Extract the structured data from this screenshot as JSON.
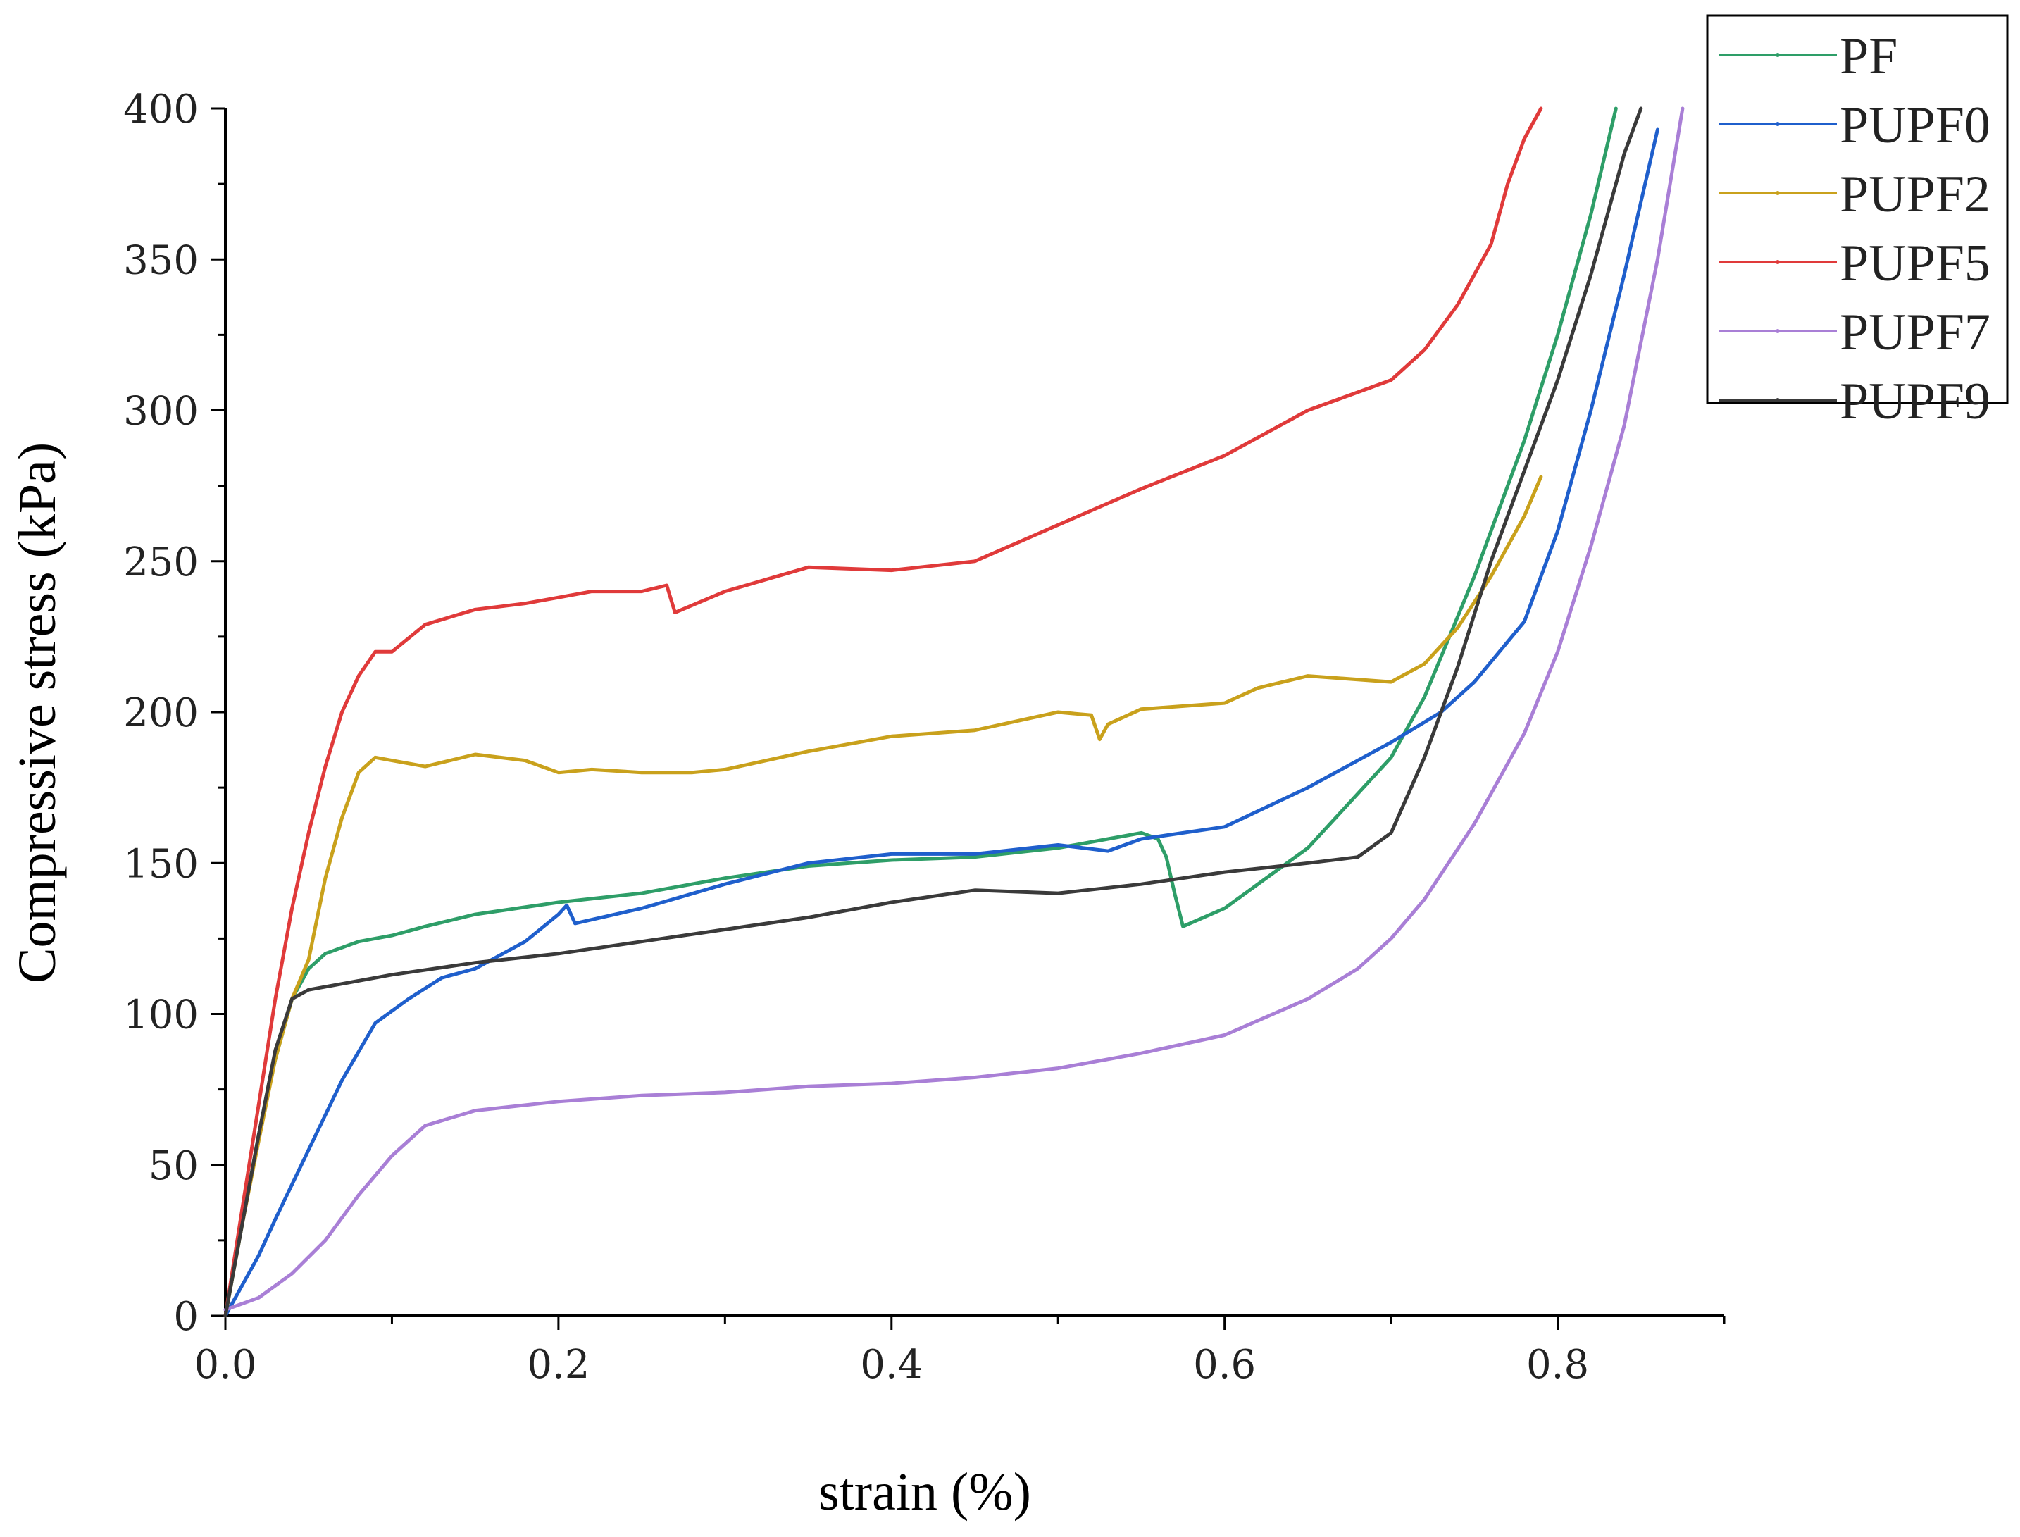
{
  "chart_data": {
    "type": "line",
    "title": "",
    "xlabel": "strain (%)",
    "ylabel": "Compressive stress (kPa)",
    "xlim": [
      0,
      0.9
    ],
    "ylim": [
      0,
      400
    ],
    "x_ticks": [
      0.0,
      0.2,
      0.4,
      0.6,
      0.8
    ],
    "x_tick_labels": [
      "0.0",
      "0.2",
      "0.4",
      "0.6",
      "0.8"
    ],
    "y_ticks": [
      0,
      50,
      100,
      150,
      200,
      250,
      300,
      350,
      400
    ],
    "y_tick_labels": [
      "0",
      "50",
      "100",
      "150",
      "200",
      "250",
      "300",
      "350",
      "400"
    ],
    "grid": false,
    "legend_position": "top-right",
    "series": [
      {
        "name": "PF",
        "color": "#2e9e68",
        "x": [
          0,
          0.01,
          0.02,
          0.03,
          0.04,
          0.05,
          0.06,
          0.08,
          0.1,
          0.12,
          0.15,
          0.2,
          0.25,
          0.3,
          0.35,
          0.4,
          0.45,
          0.5,
          0.53,
          0.55,
          0.56,
          0.565,
          0.57,
          0.575,
          0.6,
          0.65,
          0.7,
          0.72,
          0.75,
          0.78,
          0.8,
          0.82,
          0.835
        ],
        "y": [
          0,
          30,
          60,
          85,
          105,
          115,
          120,
          124,
          126,
          129,
          133,
          137,
          140,
          145,
          149,
          151,
          152,
          155,
          158,
          160,
          158,
          152,
          140,
          129,
          135,
          155,
          185,
          205,
          245,
          290,
          325,
          365,
          400
        ]
      },
      {
        "name": "PUPF0",
        "color": "#1f5fcc",
        "x": [
          0,
          0.01,
          0.02,
          0.03,
          0.05,
          0.07,
          0.09,
          0.11,
          0.13,
          0.15,
          0.18,
          0.2,
          0.205,
          0.21,
          0.25,
          0.3,
          0.35,
          0.4,
          0.45,
          0.5,
          0.53,
          0.55,
          0.6,
          0.65,
          0.7,
          0.73,
          0.75,
          0.78,
          0.8,
          0.82,
          0.84,
          0.86
        ],
        "y": [
          0,
          10,
          20,
          32,
          55,
          78,
          97,
          105,
          112,
          115,
          124,
          133,
          136,
          130,
          135,
          143,
          150,
          153,
          153,
          156,
          154,
          158,
          162,
          175,
          190,
          200,
          210,
          230,
          260,
          300,
          345,
          393
        ]
      },
      {
        "name": "PUPF2",
        "color": "#c9a11c",
        "x": [
          0,
          0.01,
          0.02,
          0.03,
          0.04,
          0.05,
          0.06,
          0.07,
          0.08,
          0.09,
          0.1,
          0.12,
          0.15,
          0.18,
          0.2,
          0.22,
          0.25,
          0.28,
          0.3,
          0.35,
          0.4,
          0.45,
          0.5,
          0.52,
          0.525,
          0.53,
          0.55,
          0.6,
          0.62,
          0.65,
          0.7,
          0.72,
          0.74,
          0.76,
          0.78,
          0.79
        ],
        "y": [
          0,
          30,
          58,
          85,
          105,
          118,
          145,
          165,
          180,
          185,
          184,
          182,
          186,
          184,
          180,
          181,
          180,
          180,
          181,
          187,
          192,
          194,
          200,
          199,
          191,
          196,
          201,
          203,
          208,
          212,
          210,
          216,
          228,
          245,
          265,
          278
        ]
      },
      {
        "name": "PUPF5",
        "color": "#e03a3a",
        "x": [
          0,
          0.01,
          0.02,
          0.03,
          0.04,
          0.05,
          0.06,
          0.07,
          0.08,
          0.09,
          0.1,
          0.12,
          0.15,
          0.18,
          0.2,
          0.22,
          0.25,
          0.265,
          0.27,
          0.3,
          0.35,
          0.4,
          0.45,
          0.5,
          0.55,
          0.6,
          0.65,
          0.7,
          0.72,
          0.74,
          0.76,
          0.77,
          0.78,
          0.79
        ],
        "y": [
          0,
          35,
          70,
          105,
          135,
          160,
          182,
          200,
          212,
          220,
          220,
          229,
          234,
          236,
          238,
          240,
          240,
          242,
          233,
          240,
          248,
          247,
          250,
          262,
          274,
          285,
          300,
          310,
          320,
          335,
          355,
          375,
          390,
          400
        ]
      },
      {
        "name": "PUPF7",
        "color": "#a97fd6",
        "x": [
          0,
          0.02,
          0.04,
          0.06,
          0.08,
          0.1,
          0.12,
          0.15,
          0.2,
          0.25,
          0.3,
          0.35,
          0.4,
          0.45,
          0.5,
          0.55,
          0.6,
          0.65,
          0.68,
          0.7,
          0.72,
          0.75,
          0.78,
          0.8,
          0.82,
          0.84,
          0.86,
          0.875
        ],
        "y": [
          2,
          6,
          14,
          25,
          40,
          53,
          63,
          68,
          71,
          73,
          74,
          76,
          77,
          79,
          82,
          87,
          93,
          105,
          115,
          125,
          138,
          163,
          193,
          220,
          255,
          295,
          350,
          400
        ]
      },
      {
        "name": "PUPF9",
        "color": "#3a3a3a",
        "x": [
          0,
          0.01,
          0.02,
          0.03,
          0.04,
          0.05,
          0.07,
          0.1,
          0.15,
          0.2,
          0.25,
          0.3,
          0.35,
          0.4,
          0.45,
          0.5,
          0.55,
          0.6,
          0.65,
          0.68,
          0.7,
          0.72,
          0.74,
          0.76,
          0.78,
          0.8,
          0.82,
          0.84,
          0.85
        ],
        "y": [
          0,
          30,
          60,
          88,
          105,
          108,
          110,
          113,
          117,
          120,
          124,
          128,
          132,
          137,
          141,
          140,
          143,
          147,
          150,
          152,
          160,
          185,
          215,
          250,
          280,
          310,
          345,
          385,
          400
        ]
      }
    ]
  }
}
